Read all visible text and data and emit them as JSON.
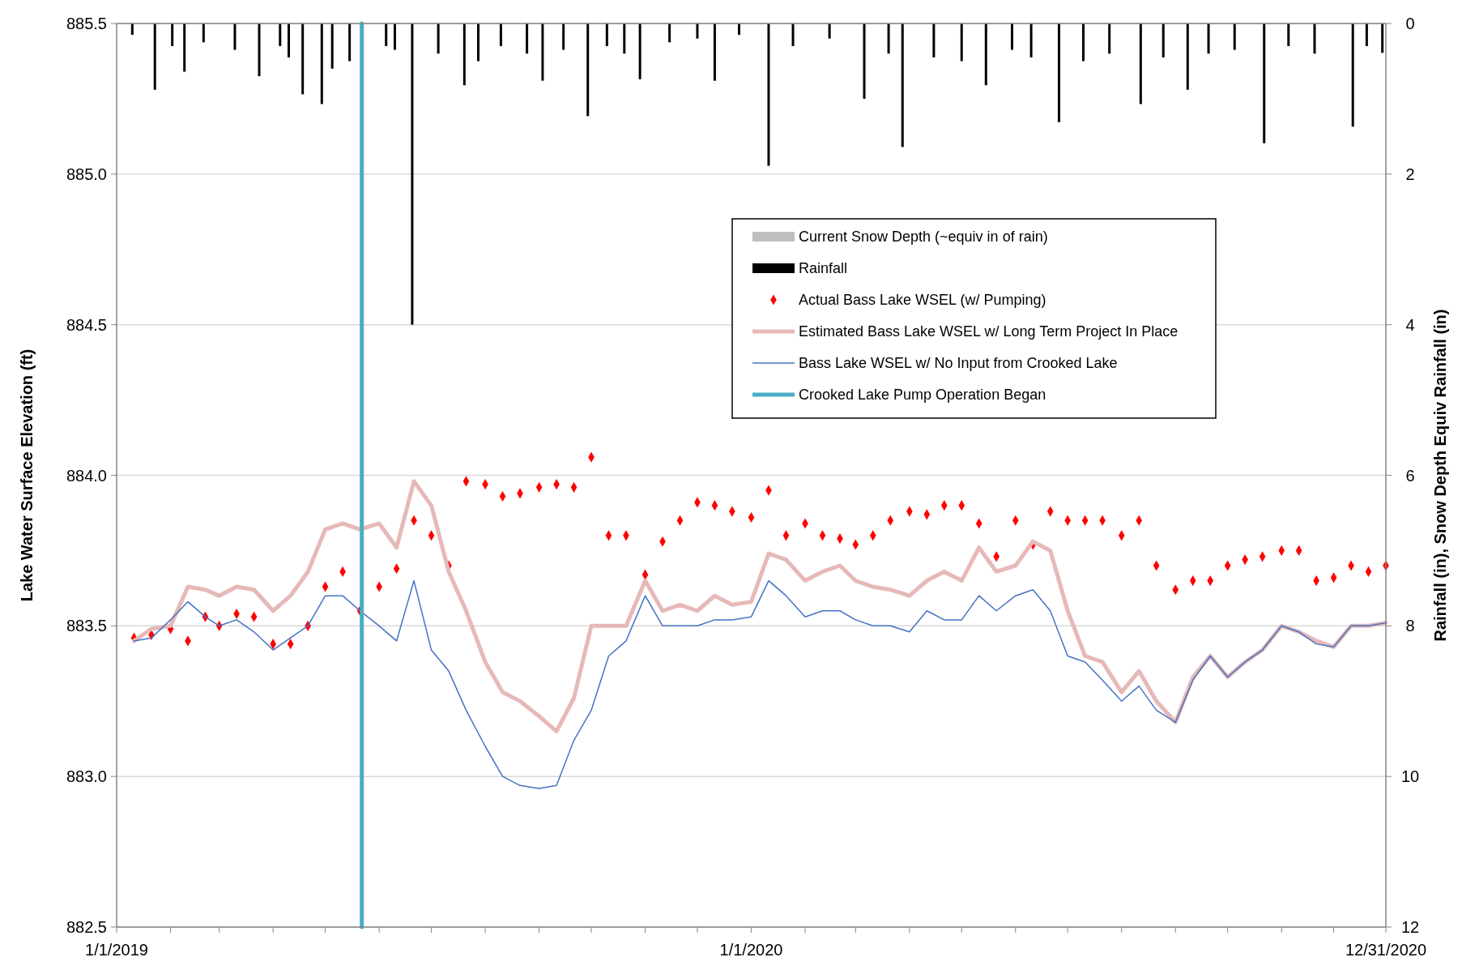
{
  "chart_data": {
    "type": "line",
    "xlabel": null,
    "ylabel": "Lake Water Surface Elevation (ft)",
    "y2label": "Rainfall (in), Snow Depth Equiv Rainfall (in)",
    "xlim": [
      "2019-01-01",
      "2020-12-31"
    ],
    "xticks": [
      {
        "value": "2019-01-01",
        "label": "1/1/2019"
      },
      {
        "value": "2019-02-01",
        "label": null
      },
      {
        "value": "2019-03-01",
        "label": null
      },
      {
        "value": "2019-04-01",
        "label": null
      },
      {
        "value": "2019-05-01",
        "label": null
      },
      {
        "value": "2019-06-01",
        "label": null
      },
      {
        "value": "2019-07-01",
        "label": null
      },
      {
        "value": "2019-08-01",
        "label": null
      },
      {
        "value": "2019-09-01",
        "label": null
      },
      {
        "value": "2019-10-01",
        "label": null
      },
      {
        "value": "2019-11-01",
        "label": null
      },
      {
        "value": "2019-12-01",
        "label": null
      },
      {
        "value": "2020-01-01",
        "label": "1/1/2020"
      },
      {
        "value": "2020-02-01",
        "label": null
      },
      {
        "value": "2020-03-01",
        "label": null
      },
      {
        "value": "2020-04-01",
        "label": null
      },
      {
        "value": "2020-05-01",
        "label": null
      },
      {
        "value": "2020-06-01",
        "label": null
      },
      {
        "value": "2020-07-01",
        "label": null
      },
      {
        "value": "2020-08-01",
        "label": null
      },
      {
        "value": "2020-09-01",
        "label": null
      },
      {
        "value": "2020-10-01",
        "label": null
      },
      {
        "value": "2020-11-01",
        "label": null
      },
      {
        "value": "2020-12-01",
        "label": null
      },
      {
        "value": "2020-12-31",
        "label": "12/31/2020"
      }
    ],
    "ylim": [
      882.5,
      885.5
    ],
    "yticks": [
      {
        "value": 882.5,
        "label": "882.5"
      },
      {
        "value": 883,
        "label": "883.0"
      },
      {
        "value": 883.5,
        "label": "883.5"
      },
      {
        "value": 884,
        "label": "884.0"
      },
      {
        "value": 884.5,
        "label": "884.5"
      },
      {
        "value": 885,
        "label": "885.0"
      },
      {
        "value": 885.5,
        "label": "885.5"
      }
    ],
    "y2lim": [
      12,
      0
    ],
    "y2ticks": [
      0,
      2,
      4,
      6,
      8,
      10,
      12
    ],
    "grid": "y",
    "legend": "top right",
    "series": [
      {
        "name": "Current Snow Depth (~equiv  in of rain)",
        "type": "bar",
        "axis": "y2",
        "color": "#bfbfbf"
      },
      {
        "name": "Rainfall",
        "type": "bar",
        "axis": "y2",
        "color": "#000000",
        "x": [
          "2019-01-10",
          "2019-01-23",
          "2019-02-02",
          "2019-02-09",
          "2019-02-20",
          "2019-03-10",
          "2019-03-24",
          "2019-04-05",
          "2019-04-10",
          "2019-04-18",
          "2019-04-29",
          "2019-05-05",
          "2019-05-15",
          "2019-06-05",
          "2019-06-10",
          "2019-06-20",
          "2019-07-05",
          "2019-07-20",
          "2019-07-28",
          "2019-08-10",
          "2019-08-25",
          "2019-09-03",
          "2019-09-15",
          "2019-09-29",
          "2019-10-10",
          "2019-10-20",
          "2019-10-29",
          "2019-11-15",
          "2019-12-01",
          "2019-12-11",
          "2019-12-25",
          "2020-01-11",
          "2020-01-25",
          "2020-02-15",
          "2020-03-06",
          "2020-03-20",
          "2020-03-28",
          "2020-04-15",
          "2020-05-01",
          "2020-05-15",
          "2020-05-30",
          "2020-06-10",
          "2020-06-26",
          "2020-07-10",
          "2020-07-25",
          "2020-08-12",
          "2020-08-25",
          "2020-09-08",
          "2020-09-20",
          "2020-10-05",
          "2020-10-22",
          "2020-11-05",
          "2020-11-20",
          "2020-12-12",
          "2020-12-20",
          "2020-12-29"
        ],
        "values": [
          0.15,
          0.88,
          0.3,
          0.64,
          0.25,
          0.35,
          0.7,
          0.3,
          0.45,
          0.94,
          1.07,
          0.6,
          0.5,
          0.3,
          0.35,
          4.0,
          0.4,
          0.82,
          0.5,
          0.3,
          0.4,
          0.76,
          0.35,
          1.23,
          0.3,
          0.4,
          0.74,
          0.25,
          0.2,
          0.76,
          0.15,
          1.89,
          0.3,
          0.2,
          1.0,
          0.4,
          1.64,
          0.45,
          0.5,
          0.82,
          0.35,
          0.45,
          1.31,
          0.5,
          0.4,
          1.07,
          0.45,
          0.88,
          0.4,
          0.35,
          1.59,
          0.3,
          0.4,
          1.37,
          0.3,
          0.39
        ]
      },
      {
        "name": "Actual Bass Lake WSEL (w/ Pumping)",
        "type": "scatter",
        "marker": "diamond",
        "color": "#ff0000",
        "x": [
          "2019-01-11",
          "2019-01-21",
          "2019-02-01",
          "2019-02-11",
          "2019-02-21",
          "2019-03-01",
          "2019-03-11",
          "2019-03-21",
          "2019-04-01",
          "2019-04-11",
          "2019-04-21",
          "2019-05-01",
          "2019-05-11",
          "2019-05-21",
          "2019-06-01",
          "2019-06-11",
          "2019-06-21",
          "2019-07-01",
          "2019-07-11",
          "2019-07-21",
          "2019-08-01",
          "2019-08-11",
          "2019-08-21",
          "2019-09-01",
          "2019-09-11",
          "2019-09-21",
          "2019-10-01",
          "2019-10-11",
          "2019-10-21",
          "2019-11-01",
          "2019-11-11",
          "2019-11-21",
          "2019-12-01",
          "2019-12-11",
          "2019-12-21",
          "2020-01-01",
          "2020-01-11",
          "2020-01-21",
          "2020-02-01",
          "2020-02-11",
          "2020-02-21",
          "2020-03-01",
          "2020-03-11",
          "2020-03-21",
          "2020-04-01",
          "2020-04-11",
          "2020-04-21",
          "2020-05-01",
          "2020-05-11",
          "2020-05-21",
          "2020-06-01",
          "2020-06-11",
          "2020-06-21",
          "2020-07-01",
          "2020-07-11",
          "2020-07-21",
          "2020-08-01",
          "2020-08-11",
          "2020-08-21",
          "2020-09-01",
          "2020-09-11",
          "2020-09-21",
          "2020-10-01",
          "2020-10-11",
          "2020-10-21",
          "2020-11-01",
          "2020-11-11",
          "2020-11-21",
          "2020-12-01",
          "2020-12-11",
          "2020-12-21",
          "2020-12-31"
        ],
        "values": [
          883.46,
          883.47,
          883.49,
          883.45,
          883.53,
          883.5,
          883.54,
          883.53,
          883.44,
          883.44,
          883.5,
          883.63,
          883.68,
          883.55,
          883.63,
          883.69,
          883.85,
          883.8,
          883.7,
          883.98,
          883.97,
          883.93,
          883.94,
          883.96,
          883.97,
          883.96,
          884.06,
          883.8,
          883.8,
          883.67,
          883.78,
          883.85,
          883.91,
          883.9,
          883.88,
          883.86,
          883.95,
          883.8,
          883.84,
          883.8,
          883.79,
          883.77,
          883.8,
          883.85,
          883.88,
          883.87,
          883.9,
          883.9,
          883.84,
          883.73,
          883.85,
          883.77,
          883.88,
          883.85,
          883.85,
          883.85,
          883.8,
          883.85,
          883.7,
          883.62,
          883.65,
          883.65,
          883.7,
          883.72,
          883.73,
          883.75,
          883.75,
          883.65,
          883.66,
          883.7,
          883.68,
          883.7
        ]
      },
      {
        "name": "Estimated Bass Lake WSEL w/ Long Term Project In Place",
        "color": "#e6b9b8",
        "x": [
          "2019-01-11",
          "2019-01-21",
          "2019-02-01",
          "2019-02-11",
          "2019-02-21",
          "2019-03-01",
          "2019-03-11",
          "2019-03-21",
          "2019-04-01",
          "2019-04-11",
          "2019-04-21",
          "2019-05-01",
          "2019-05-11",
          "2019-05-21",
          "2019-06-01",
          "2019-06-11",
          "2019-06-21",
          "2019-07-01",
          "2019-07-11",
          "2019-07-21",
          "2019-08-01",
          "2019-08-11",
          "2019-08-21",
          "2019-09-01",
          "2019-09-11",
          "2019-09-21",
          "2019-10-01",
          "2019-10-11",
          "2019-10-21",
          "2019-11-01",
          "2019-11-11",
          "2019-11-21",
          "2019-12-01",
          "2019-12-11",
          "2019-12-21",
          "2020-01-01",
          "2020-01-11",
          "2020-01-21",
          "2020-02-01",
          "2020-02-11",
          "2020-02-21",
          "2020-03-01",
          "2020-03-11",
          "2020-03-21",
          "2020-04-01",
          "2020-04-11",
          "2020-04-21",
          "2020-05-01",
          "2020-05-11",
          "2020-05-21",
          "2020-06-01",
          "2020-06-11",
          "2020-06-21",
          "2020-07-01",
          "2020-07-11",
          "2020-07-21",
          "2020-08-01",
          "2020-08-11",
          "2020-08-21",
          "2020-09-01",
          "2020-09-11",
          "2020-09-21",
          "2020-10-01",
          "2020-10-11",
          "2020-10-21",
          "2020-11-01",
          "2020-11-11",
          "2020-11-21",
          "2020-12-01",
          "2020-12-11",
          "2020-12-21",
          "2020-12-31"
        ],
        "values": [
          883.45,
          883.49,
          883.5,
          883.63,
          883.62,
          883.6,
          883.63,
          883.62,
          883.55,
          883.6,
          883.68,
          883.82,
          883.84,
          883.82,
          883.84,
          883.76,
          883.98,
          883.9,
          883.68,
          883.55,
          883.38,
          883.28,
          883.25,
          883.2,
          883.15,
          883.26,
          883.5,
          883.5,
          883.5,
          883.65,
          883.55,
          883.57,
          883.55,
          883.6,
          883.57,
          883.58,
          883.74,
          883.72,
          883.65,
          883.68,
          883.7,
          883.65,
          883.63,
          883.62,
          883.6,
          883.65,
          883.68,
          883.65,
          883.76,
          883.68,
          883.7,
          883.78,
          883.75,
          883.55,
          883.4,
          883.38,
          883.28,
          883.35,
          883.25,
          883.18,
          883.33,
          883.4,
          883.33,
          883.38,
          883.42,
          883.5,
          883.48,
          883.45,
          883.43,
          883.5,
          883.5,
          883.51
        ]
      },
      {
        "name": "Bass Lake WSEL w/ No Input from Crooked Lake",
        "color": "#4472c4",
        "x": [
          "2019-01-11",
          "2019-01-21",
          "2019-02-01",
          "2019-02-11",
          "2019-02-21",
          "2019-03-01",
          "2019-03-11",
          "2019-03-21",
          "2019-04-01",
          "2019-04-11",
          "2019-04-21",
          "2019-05-01",
          "2019-05-11",
          "2019-05-21",
          "2019-06-01",
          "2019-06-11",
          "2019-06-21",
          "2019-07-01",
          "2019-07-11",
          "2019-07-21",
          "2019-08-01",
          "2019-08-11",
          "2019-08-21",
          "2019-09-01",
          "2019-09-11",
          "2019-09-21",
          "2019-10-01",
          "2019-10-11",
          "2019-10-21",
          "2019-11-01",
          "2019-11-11",
          "2019-11-21",
          "2019-12-01",
          "2019-12-11",
          "2019-12-21",
          "2020-01-01",
          "2020-01-11",
          "2020-01-21",
          "2020-02-01",
          "2020-02-11",
          "2020-02-21",
          "2020-03-01",
          "2020-03-11",
          "2020-03-21",
          "2020-04-01",
          "2020-04-11",
          "2020-04-21",
          "2020-05-01",
          "2020-05-11",
          "2020-05-21",
          "2020-06-01",
          "2020-06-11",
          "2020-06-21",
          "2020-07-01",
          "2020-07-11",
          "2020-07-21",
          "2020-08-01",
          "2020-08-11",
          "2020-08-21",
          "2020-09-01",
          "2020-09-11",
          "2020-09-21",
          "2020-10-01",
          "2020-10-11",
          "2020-10-21",
          "2020-11-01",
          "2020-11-11",
          "2020-11-21",
          "2020-12-01",
          "2020-12-11",
          "2020-12-21",
          "2020-12-31"
        ],
        "type": "line",
        "values": [
          883.45,
          883.46,
          883.52,
          883.58,
          883.53,
          883.5,
          883.52,
          883.48,
          883.42,
          883.46,
          883.5,
          883.6,
          883.6,
          883.55,
          883.5,
          883.45,
          883.65,
          883.42,
          883.35,
          883.22,
          883.1,
          883.0,
          882.97,
          882.96,
          882.97,
          883.12,
          883.22,
          883.4,
          883.45,
          883.6,
          883.5,
          883.5,
          883.5,
          883.52,
          883.52,
          883.53,
          883.65,
          883.6,
          883.53,
          883.55,
          883.55,
          883.52,
          883.5,
          883.5,
          883.48,
          883.55,
          883.52,
          883.52,
          883.6,
          883.55,
          883.6,
          883.62,
          883.55,
          883.4,
          883.38,
          883.32,
          883.25,
          883.3,
          883.22,
          883.18,
          883.32,
          883.4,
          883.33,
          883.38,
          883.42,
          883.5,
          883.48,
          883.44,
          883.43,
          883.5,
          883.5,
          883.51
        ]
      },
      {
        "name": "Crooked Lake Pump Operation Began",
        "type": "line",
        "color": "#4bacc6",
        "x": [
          "2019-05-22",
          "2019-05-22"
        ],
        "values": [
          882.5,
          885.5
        ]
      }
    ]
  }
}
